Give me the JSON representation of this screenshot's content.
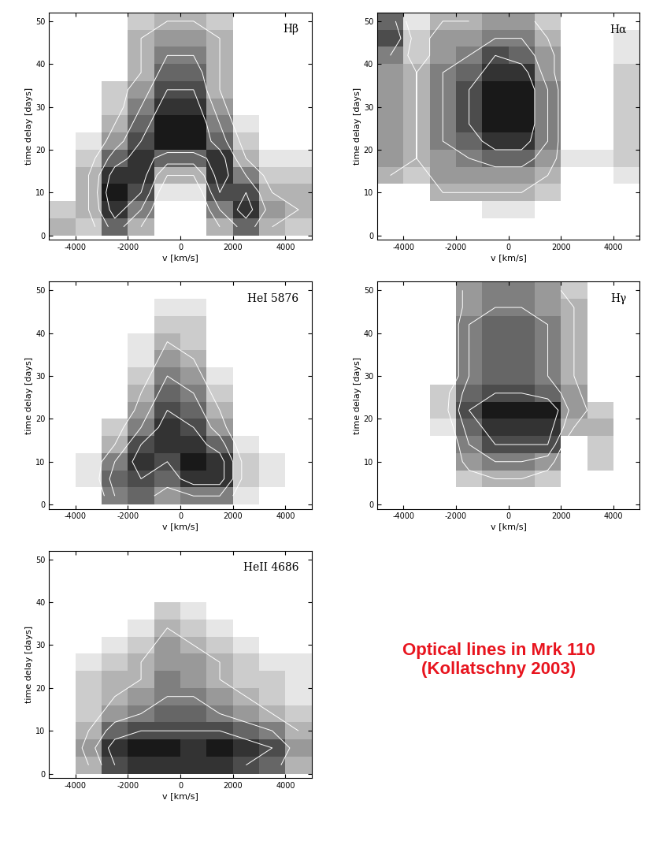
{
  "chart_data": [
    {
      "type": "heatmap",
      "title": "Hβ",
      "x_label": "v [km/s]",
      "y_label": "time delay [days]",
      "xlim": [
        -5000,
        5000
      ],
      "ylim": [
        -1,
        52
      ],
      "xticks": [
        -4000,
        -2000,
        0,
        2000,
        4000
      ],
      "yticks": [
        0,
        10,
        20,
        30,
        40,
        50
      ],
      "x_edges": [
        -5000,
        -4000,
        -3000,
        -2000,
        -1000,
        0,
        1000,
        2000,
        3000,
        4000,
        5000
      ],
      "y_edges": [
        0,
        4,
        8,
        12,
        16,
        20,
        24,
        28,
        32,
        36,
        40,
        44,
        48,
        52
      ],
      "color_range": [
        0,
        1
      ],
      "contour_levels": [
        0.3,
        0.5,
        0.7,
        0.9
      ],
      "cells": [
        [
          0.3,
          0.2,
          0.6,
          0.3,
          0,
          0,
          0.3,
          0.6,
          0.3,
          0.2
        ],
        [
          0.2,
          0.3,
          0.8,
          0.5,
          0,
          0,
          0.5,
          0.8,
          0.4,
          0.3
        ],
        [
          0,
          0.3,
          0.9,
          0.7,
          0.1,
          0.1,
          0.7,
          0.7,
          0.3,
          0.3
        ],
        [
          0,
          0.3,
          0.8,
          0.8,
          0.3,
          0.3,
          0.8,
          0.5,
          0.2,
          0.2
        ],
        [
          0,
          0.2,
          0.6,
          0.8,
          0.6,
          0.6,
          0.8,
          0.3,
          0.1,
          0.1
        ],
        [
          0,
          0.1,
          0.4,
          0.7,
          0.9,
          0.9,
          0.6,
          0.2,
          0,
          0
        ],
        [
          0,
          0,
          0.3,
          0.6,
          0.9,
          0.9,
          0.5,
          0.1,
          0,
          0
        ],
        [
          0,
          0,
          0.2,
          0.5,
          0.8,
          0.8,
          0.4,
          0,
          0,
          0
        ],
        [
          0,
          0,
          0.2,
          0.4,
          0.7,
          0.7,
          0.3,
          0,
          0,
          0
        ],
        [
          0,
          0,
          0,
          0.3,
          0.6,
          0.6,
          0.3,
          0,
          0,
          0
        ],
        [
          0,
          0,
          0,
          0.3,
          0.5,
          0.5,
          0.3,
          0,
          0,
          0
        ],
        [
          0,
          0,
          0,
          0.3,
          0.4,
          0.4,
          0.3,
          0,
          0,
          0
        ],
        [
          0,
          0,
          0,
          0.2,
          0.3,
          0.3,
          0.2,
          0,
          0,
          0
        ]
      ]
    },
    {
      "type": "heatmap",
      "title": "Hα",
      "x_label": "v [km/s]",
      "y_label": "time delay [days]",
      "xlim": [
        -5000,
        5000
      ],
      "ylim": [
        -1,
        52
      ],
      "xticks": [
        -4000,
        -2000,
        0,
        2000,
        4000
      ],
      "yticks": [
        0,
        10,
        20,
        30,
        40,
        50
      ],
      "x_edges": [
        -5000,
        -4000,
        -3000,
        -2000,
        -1000,
        0,
        1000,
        2000,
        3000,
        4000,
        5000
      ],
      "y_edges": [
        0,
        4,
        8,
        12,
        16,
        20,
        24,
        28,
        32,
        36,
        40,
        44,
        48,
        52
      ],
      "color_range": [
        0,
        1
      ],
      "contour_levels": [
        0.3,
        0.5,
        0.7,
        0.9
      ],
      "cells": [
        [
          0,
          0,
          0,
          0,
          0,
          0,
          0,
          0,
          0,
          0
        ],
        [
          0,
          0,
          0,
          0,
          0.1,
          0.1,
          0,
          0,
          0,
          0
        ],
        [
          0,
          0,
          0.3,
          0.3,
          0.3,
          0.3,
          0.2,
          0,
          0,
          0
        ],
        [
          0.3,
          0.2,
          0.4,
          0.4,
          0.4,
          0.4,
          0.3,
          0,
          0,
          0.1
        ],
        [
          0.4,
          0.3,
          0.4,
          0.5,
          0.6,
          0.6,
          0.4,
          0.1,
          0.1,
          0.2
        ],
        [
          0.4,
          0.3,
          0.5,
          0.6,
          0.8,
          0.8,
          0.5,
          0,
          0,
          0.2
        ],
        [
          0.4,
          0.3,
          0.5,
          0.7,
          0.9,
          0.9,
          0.5,
          0,
          0,
          0.2
        ],
        [
          0.4,
          0.3,
          0.5,
          0.7,
          0.9,
          0.9,
          0.5,
          0,
          0,
          0.2
        ],
        [
          0.4,
          0.3,
          0.5,
          0.7,
          0.9,
          0.9,
          0.5,
          0,
          0,
          0.2
        ],
        [
          0.4,
          0.3,
          0.5,
          0.6,
          0.8,
          0.8,
          0.4,
          0,
          0,
          0.2
        ],
        [
          0.5,
          0.2,
          0.4,
          0.5,
          0.7,
          0.6,
          0.4,
          0,
          0,
          0.1
        ],
        [
          0.7,
          0.2,
          0.4,
          0.4,
          0.5,
          0.5,
          0.3,
          0,
          0,
          0.1
        ],
        [
          0.6,
          0.1,
          0.3,
          0.3,
          0.4,
          0.4,
          0.2,
          0,
          0,
          0
        ]
      ]
    },
    {
      "type": "heatmap",
      "title": "HeI 5876",
      "x_label": "v [km/s]",
      "y_label": "time delay [days]",
      "xlim": [
        -5000,
        5000
      ],
      "ylim": [
        -1,
        52
      ],
      "xticks": [
        -4000,
        -2000,
        0,
        2000,
        4000
      ],
      "yticks": [
        0,
        10,
        20,
        30,
        40,
        50
      ],
      "x_edges": [
        -5000,
        -4000,
        -3000,
        -2000,
        -1000,
        0,
        1000,
        2000,
        3000,
        4000,
        5000
      ],
      "y_edges": [
        0,
        4,
        8,
        12,
        16,
        20,
        24,
        28,
        32,
        36,
        40,
        44,
        48,
        52
      ],
      "color_range": [
        0,
        1
      ],
      "contour_levels": [
        0.3,
        0.5,
        0.7,
        0.9
      ],
      "cells": [
        [
          0,
          0,
          0.5,
          0.6,
          0.4,
          0.5,
          0.5,
          0.1,
          0,
          0
        ],
        [
          0,
          0.1,
          0.6,
          0.7,
          0.6,
          0.8,
          0.8,
          0.2,
          0.1,
          0
        ],
        [
          0,
          0.1,
          0.5,
          0.8,
          0.7,
          0.9,
          0.8,
          0.2,
          0.1,
          0
        ],
        [
          0,
          0,
          0.3,
          0.7,
          0.8,
          0.8,
          0.6,
          0.1,
          0,
          0
        ],
        [
          0,
          0,
          0.2,
          0.5,
          0.8,
          0.7,
          0.4,
          0,
          0,
          0
        ],
        [
          0,
          0,
          0,
          0.4,
          0.7,
          0.6,
          0.3,
          0,
          0,
          0
        ],
        [
          0,
          0,
          0,
          0.3,
          0.6,
          0.5,
          0.2,
          0,
          0,
          0
        ],
        [
          0,
          0,
          0,
          0.2,
          0.5,
          0.4,
          0.1,
          0,
          0,
          0
        ],
        [
          0,
          0,
          0,
          0.1,
          0.4,
          0.3,
          0,
          0,
          0,
          0
        ],
        [
          0,
          0,
          0,
          0.1,
          0.3,
          0.2,
          0,
          0,
          0,
          0
        ],
        [
          0,
          0,
          0,
          0,
          0.2,
          0.2,
          0,
          0,
          0,
          0
        ],
        [
          0,
          0,
          0,
          0,
          0.1,
          0.1,
          0,
          0,
          0,
          0
        ],
        [
          0,
          0,
          0,
          0,
          0,
          0,
          0,
          0,
          0,
          0
        ]
      ]
    },
    {
      "type": "heatmap",
      "title": "Hγ",
      "x_label": "v [km/s]",
      "y_label": "time delay [days]",
      "xlim": [
        -5000,
        5000
      ],
      "ylim": [
        -1,
        52
      ],
      "xticks": [
        -4000,
        -2000,
        0,
        2000,
        4000
      ],
      "yticks": [
        0,
        10,
        20,
        30,
        40,
        50
      ],
      "x_edges": [
        -5000,
        -4000,
        -3000,
        -2000,
        -1000,
        0,
        1000,
        2000,
        3000,
        4000,
        5000
      ],
      "y_edges": [
        0,
        4,
        8,
        12,
        16,
        20,
        24,
        28,
        32,
        36,
        40,
        44,
        48,
        52
      ],
      "color_range": [
        0,
        1
      ],
      "contour_levels": [
        0.3,
        0.5,
        0.7,
        0.9
      ],
      "cells": [
        [
          0,
          0,
          0,
          0,
          0,
          0,
          0,
          0,
          0,
          0
        ],
        [
          0,
          0,
          0,
          0.2,
          0.3,
          0.3,
          0.2,
          0,
          0,
          0
        ],
        [
          0,
          0,
          0,
          0.4,
          0.5,
          0.5,
          0.4,
          0,
          0.2,
          0
        ],
        [
          0,
          0,
          0,
          0.5,
          0.7,
          0.7,
          0.7,
          0,
          0.2,
          0
        ],
        [
          0,
          0,
          0.1,
          0.6,
          0.8,
          0.8,
          0.8,
          0.3,
          0.3,
          0
        ],
        [
          0,
          0,
          0.2,
          0.7,
          0.9,
          0.9,
          0.9,
          0.4,
          0.2,
          0
        ],
        [
          0,
          0,
          0.2,
          0.6,
          0.7,
          0.7,
          0.6,
          0.4,
          0,
          0
        ],
        [
          0,
          0,
          0,
          0.5,
          0.6,
          0.6,
          0.5,
          0.3,
          0,
          0
        ],
        [
          0,
          0,
          0,
          0.5,
          0.6,
          0.6,
          0.5,
          0.3,
          0,
          0
        ],
        [
          0,
          0,
          0,
          0.5,
          0.6,
          0.6,
          0.5,
          0.3,
          0,
          0
        ],
        [
          0,
          0,
          0,
          0.5,
          0.6,
          0.6,
          0.5,
          0.3,
          0,
          0
        ],
        [
          0,
          0,
          0,
          0.4,
          0.5,
          0.5,
          0.4,
          0.3,
          0,
          0
        ],
        [
          0,
          0,
          0,
          0.4,
          0.5,
          0.5,
          0.4,
          0.2,
          0,
          0
        ]
      ]
    },
    {
      "type": "heatmap",
      "title": "HeII 4686",
      "x_label": "v [km/s]",
      "y_label": "time delay [days]",
      "xlim": [
        -5000,
        5000
      ],
      "ylim": [
        -1,
        52
      ],
      "xticks": [
        -4000,
        -2000,
        0,
        2000,
        4000
      ],
      "yticks": [
        0,
        10,
        20,
        30,
        40,
        50
      ],
      "x_edges": [
        -5000,
        -4000,
        -3000,
        -2000,
        -1000,
        0,
        1000,
        2000,
        3000,
        4000,
        5000
      ],
      "y_edges": [
        0,
        4,
        8,
        12,
        16,
        20,
        24,
        28,
        32,
        36,
        40,
        44,
        48,
        52
      ],
      "color_range": [
        0,
        1
      ],
      "contour_levels": [
        0.3,
        0.5,
        0.7,
        0.9
      ],
      "cells": [
        [
          0,
          0.3,
          0.7,
          0.8,
          0.8,
          0.8,
          0.8,
          0.7,
          0.6,
          0.3
        ],
        [
          0,
          0.4,
          0.8,
          0.9,
          0.9,
          0.8,
          0.9,
          0.8,
          0.7,
          0.4
        ],
        [
          0,
          0.3,
          0.6,
          0.7,
          0.7,
          0.7,
          0.7,
          0.6,
          0.5,
          0.3
        ],
        [
          0,
          0.2,
          0.4,
          0.5,
          0.6,
          0.6,
          0.5,
          0.4,
          0.3,
          0.2
        ],
        [
          0,
          0.2,
          0.3,
          0.4,
          0.5,
          0.5,
          0.4,
          0.3,
          0.2,
          0.1
        ],
        [
          0,
          0.2,
          0.3,
          0.3,
          0.5,
          0.4,
          0.3,
          0.2,
          0.2,
          0.1
        ],
        [
          0,
          0.1,
          0.2,
          0.3,
          0.4,
          0.4,
          0.3,
          0.2,
          0.1,
          0.1
        ],
        [
          0,
          0,
          0.1,
          0.2,
          0.4,
          0.3,
          0.2,
          0.1,
          0,
          0
        ],
        [
          0,
          0,
          0,
          0.1,
          0.3,
          0.2,
          0.1,
          0,
          0,
          0
        ],
        [
          0,
          0,
          0,
          0,
          0.2,
          0.1,
          0,
          0,
          0,
          0
        ],
        [
          0,
          0,
          0,
          0,
          0,
          0,
          0,
          0,
          0,
          0
        ],
        [
          0,
          0,
          0,
          0,
          0,
          0,
          0,
          0,
          0,
          0
        ],
        [
          0,
          0,
          0,
          0,
          0,
          0,
          0,
          0,
          0,
          0
        ]
      ]
    }
  ],
  "annotation": {
    "text": "Optical lines in Mrk 110\n(Kollatschny 2003)",
    "color": "#e8141e"
  }
}
